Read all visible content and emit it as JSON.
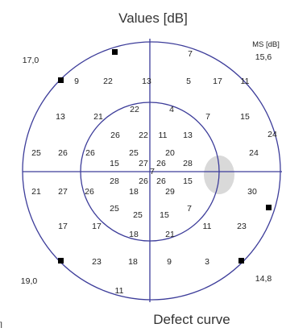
{
  "title": "Values [dB]",
  "footer_title": "Defect curve",
  "edge_text": "]",
  "ms_label": "MS [dB]",
  "quadrant_ms": {
    "top_left": "17,0",
    "top_right": "15,6",
    "bottom_left": "19,0",
    "bottom_right": "14,8"
  },
  "colors": {
    "circle_stroke": "#3d3d9a",
    "blind_spot_fill": "#d9d9d9",
    "marker": "#000000"
  },
  "chart_data": {
    "type": "table",
    "title": "Values [dB]",
    "values": [
      "7",
      "9",
      "22",
      "13",
      "5",
      "17",
      "11",
      "13",
      "21",
      "22",
      "4",
      "7",
      "15",
      "24",
      "26",
      "22",
      "11",
      "13",
      "25",
      "26",
      "26",
      "25",
      "20",
      "24",
      "15",
      "27",
      "26",
      "28",
      "7",
      "21",
      "27",
      "26",
      "28",
      "26",
      "26",
      "15",
      "30",
      "18",
      "29",
      "25",
      "25",
      "15",
      "7",
      "17",
      "17",
      "11",
      "23",
      "18",
      "21",
      "23",
      "18",
      "9",
      "3",
      "11"
    ],
    "absolute_defect_markers": 6,
    "blind_spot": "right-center"
  }
}
